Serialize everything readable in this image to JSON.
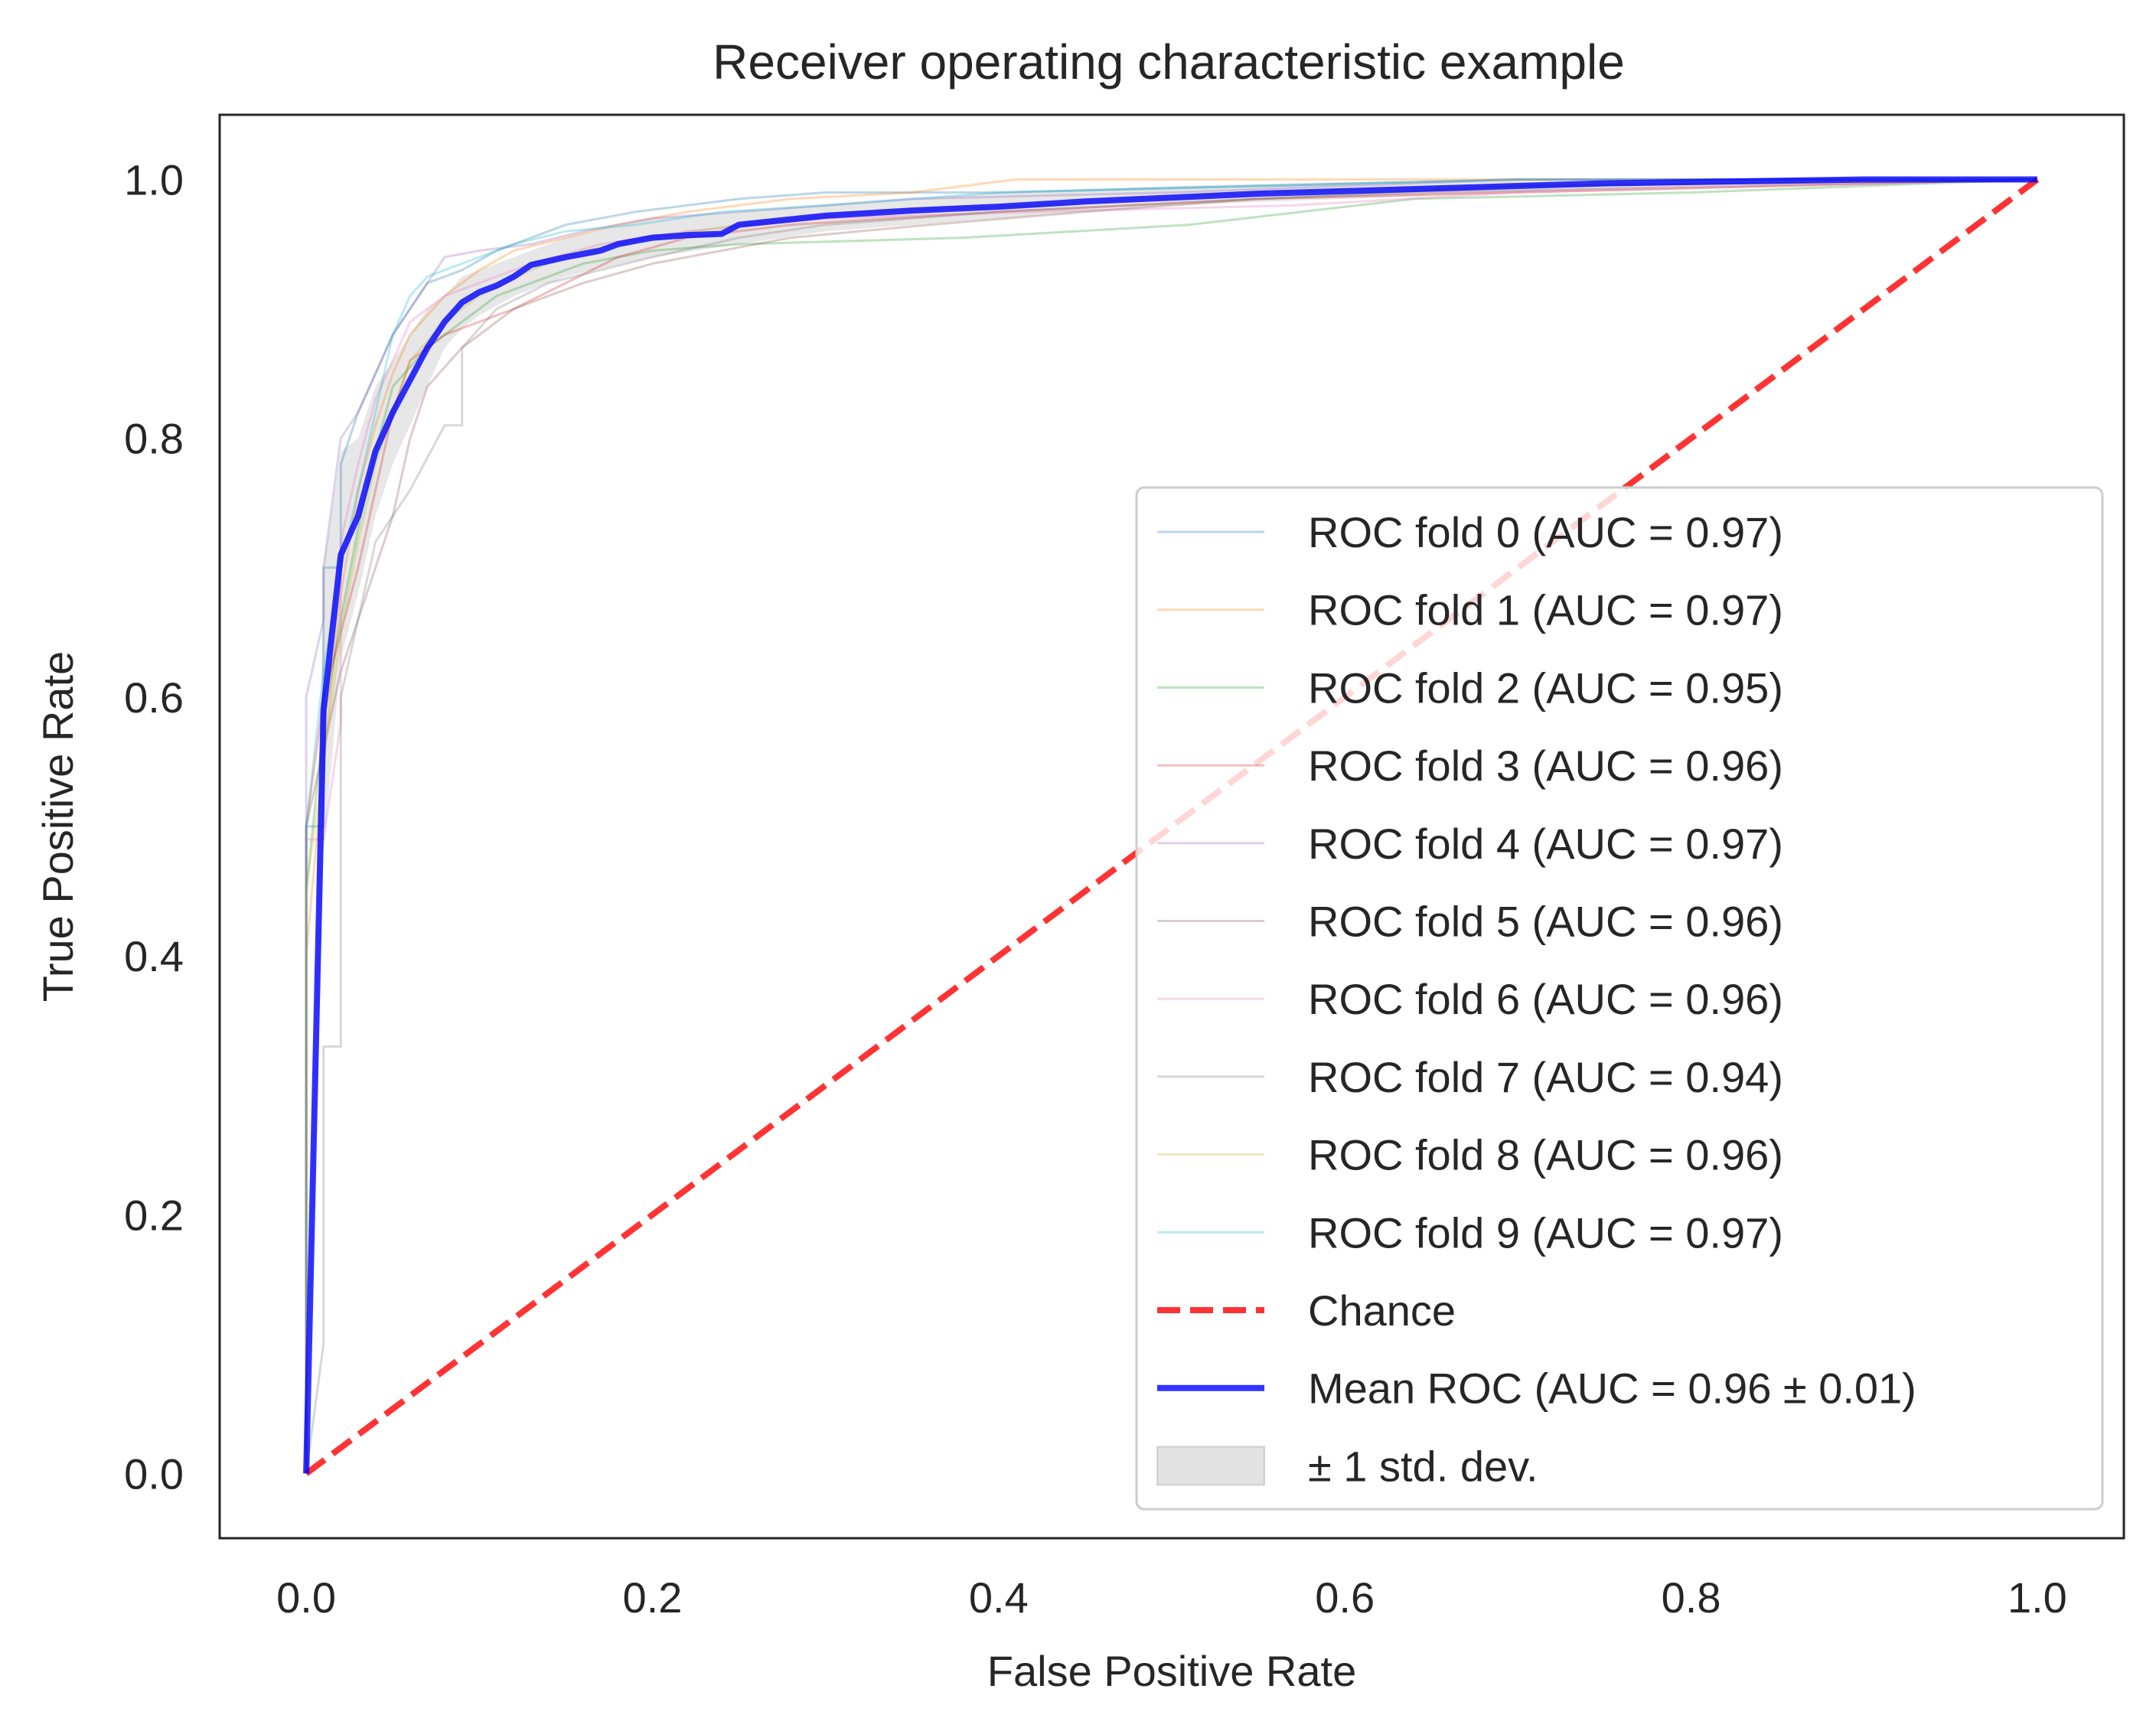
{
  "chart_data": {
    "type": "line",
    "title": "Receiver operating characteristic example",
    "xlabel": "False Positive Rate",
    "ylabel": "True Positive Rate",
    "xlim": [
      -0.05,
      1.05
    ],
    "ylim": [
      -0.05,
      1.05
    ],
    "xticks": [
      0.0,
      0.2,
      0.4,
      0.6,
      0.8,
      1.0
    ],
    "xtick_labels": [
      "0.0",
      "0.2",
      "0.4",
      "0.6",
      "0.8",
      "1.0"
    ],
    "yticks": [
      0.0,
      0.2,
      0.4,
      0.6,
      0.8,
      1.0
    ],
    "ytick_labels": [
      "0.0",
      "0.2",
      "0.4",
      "0.6",
      "0.8",
      "1.0"
    ],
    "grid": false,
    "legend_position": "lower right",
    "folds": [
      {
        "name": "ROC fold 0 (AUC = 0.97)",
        "color": "#1f77b4",
        "x": [
          0,
          0,
          0.01,
          0.01,
          0.02,
          0.02,
          0.03,
          0.04,
          0.05,
          0.06,
          0.07,
          0.09,
          0.11,
          0.13,
          0.15,
          0.17,
          0.19,
          0.22,
          0.25,
          0.3,
          0.4,
          0.55,
          0.7,
          1.0
        ],
        "y": [
          0,
          0.5,
          0.5,
          0.7,
          0.7,
          0.78,
          0.82,
          0.85,
          0.88,
          0.9,
          0.92,
          0.93,
          0.945,
          0.955,
          0.965,
          0.97,
          0.975,
          0.98,
          0.985,
          0.99,
          0.99,
          0.995,
          1.0,
          1.0
        ]
      },
      {
        "name": "ROC fold 1 (AUC = 0.97)",
        "color": "#ff7f0e",
        "x": [
          0,
          0,
          0.01,
          0.02,
          0.03,
          0.04,
          0.05,
          0.06,
          0.08,
          0.1,
          0.12,
          0.15,
          0.18,
          0.22,
          0.28,
          0.35,
          0.41,
          0.6,
          0.84,
          1.0
        ],
        "y": [
          0,
          0.4,
          0.55,
          0.68,
          0.76,
          0.81,
          0.85,
          0.88,
          0.91,
          0.93,
          0.945,
          0.955,
          0.965,
          0.975,
          0.985,
          0.99,
          1.0,
          1.0,
          1.0,
          1.0
        ]
      },
      {
        "name": "ROC fold 2 (AUC = 0.95)",
        "color": "#2ca02c",
        "x": [
          0,
          0,
          0.01,
          0.02,
          0.03,
          0.04,
          0.05,
          0.07,
          0.09,
          0.11,
          0.13,
          0.16,
          0.2,
          0.25,
          0.38,
          0.51,
          0.64,
          0.8,
          1.0
        ],
        "y": [
          0,
          0.45,
          0.58,
          0.66,
          0.73,
          0.79,
          0.84,
          0.87,
          0.89,
          0.91,
          0.92,
          0.935,
          0.945,
          0.95,
          0.955,
          0.965,
          0.985,
          0.99,
          1.0
        ]
      },
      {
        "name": "ROC fold 3 (AUC = 0.96)",
        "color": "#d62728",
        "x": [
          0,
          0,
          0.01,
          0.02,
          0.03,
          0.04,
          0.05,
          0.06,
          0.08,
          0.1,
          0.12,
          0.15,
          0.18,
          0.22,
          0.28,
          0.4,
          0.55,
          0.7,
          1.0
        ],
        "y": [
          0,
          0.5,
          0.6,
          0.65,
          0.7,
          0.76,
          0.82,
          0.86,
          0.88,
          0.89,
          0.9,
          0.92,
          0.94,
          0.955,
          0.965,
          0.975,
          0.985,
          0.99,
          1.0
        ]
      },
      {
        "name": "ROC fold 4 (AUC = 0.97)",
        "color": "#9467bd",
        "x": [
          0,
          0,
          0.01,
          0.01,
          0.02,
          0.03,
          0.04,
          0.05,
          0.06,
          0.07,
          0.08,
          0.1,
          0.13,
          0.16,
          0.2,
          0.25,
          0.35,
          0.5,
          0.7,
          1.0
        ],
        "y": [
          0,
          0.6,
          0.66,
          0.7,
          0.8,
          0.82,
          0.85,
          0.88,
          0.9,
          0.92,
          0.94,
          0.945,
          0.95,
          0.96,
          0.97,
          0.975,
          0.985,
          0.99,
          1.0,
          1.0
        ]
      },
      {
        "name": "ROC fold 5 (AUC = 0.96)",
        "color": "#8c564b",
        "x": [
          0,
          0,
          0.02,
          0.03,
          0.04,
          0.05,
          0.06,
          0.07,
          0.09,
          0.12,
          0.16,
          0.2,
          0.24,
          0.28,
          0.36,
          0.45,
          0.55,
          0.65,
          1.0
        ],
        "y": [
          0,
          0.5,
          0.62,
          0.66,
          0.7,
          0.74,
          0.8,
          0.84,
          0.87,
          0.9,
          0.92,
          0.935,
          0.945,
          0.955,
          0.965,
          0.975,
          0.985,
          0.99,
          1.0
        ]
      },
      {
        "name": "ROC fold 6 (AUC = 0.96)",
        "color": "#e377c2",
        "x": [
          0,
          0,
          0.01,
          0.02,
          0.02,
          0.03,
          0.04,
          0.05,
          0.06,
          0.08,
          0.1,
          0.13,
          0.17,
          0.22,
          0.3,
          0.42,
          0.57,
          0.7,
          1.0
        ],
        "y": [
          0,
          0.49,
          0.49,
          0.58,
          0.72,
          0.78,
          0.83,
          0.86,
          0.89,
          0.91,
          0.92,
          0.935,
          0.95,
          0.96,
          0.97,
          0.975,
          0.98,
          0.99,
          1.0
        ]
      },
      {
        "name": "ROC fold 7 (AUC = 0.94)",
        "color": "#7f7f7f",
        "x": [
          0,
          0.01,
          0.01,
          0.02,
          0.02,
          0.04,
          0.06,
          0.08,
          0.09,
          0.09,
          0.11,
          0.14,
          0.17,
          0.2,
          0.25,
          0.3,
          0.4,
          0.55,
          0.7,
          1.0
        ],
        "y": [
          0,
          0.1,
          0.33,
          0.33,
          0.6,
          0.72,
          0.76,
          0.81,
          0.81,
          0.87,
          0.9,
          0.92,
          0.93,
          0.94,
          0.955,
          0.965,
          0.975,
          0.985,
          0.995,
          1.0
        ]
      },
      {
        "name": "ROC fold 8 (AUC = 0.96)",
        "color": "#bcbd22",
        "x": [
          0,
          0,
          0.01,
          0.02,
          0.03,
          0.04,
          0.05,
          0.06,
          0.08,
          0.1,
          0.13,
          0.16,
          0.2,
          0.25,
          0.32,
          0.42,
          0.55,
          0.7,
          1.0
        ],
        "y": [
          0,
          0.45,
          0.55,
          0.65,
          0.72,
          0.78,
          0.82,
          0.86,
          0.89,
          0.91,
          0.93,
          0.945,
          0.955,
          0.965,
          0.975,
          0.98,
          0.99,
          0.995,
          1.0
        ]
      },
      {
        "name": "ROC fold 9 (AUC = 0.97)",
        "color": "#17becf",
        "x": [
          0,
          0,
          0.01,
          0.02,
          0.03,
          0.04,
          0.05,
          0.06,
          0.07,
          0.08,
          0.1,
          0.12,
          0.15,
          0.19,
          0.24,
          0.3,
          0.4,
          0.55,
          0.7,
          1.0
        ],
        "y": [
          0,
          0.5,
          0.62,
          0.7,
          0.76,
          0.82,
          0.88,
          0.91,
          0.925,
          0.93,
          0.94,
          0.95,
          0.96,
          0.965,
          0.975,
          0.98,
          0.99,
          0.995,
          1.0,
          1.0
        ]
      }
    ],
    "chance": {
      "name": "Chance",
      "color": "#ff0000",
      "x": [
        0,
        1
      ],
      "y": [
        0,
        1
      ]
    },
    "mean": {
      "name": "Mean ROC (AUC = 0.96 ± 0.01)",
      "color": "#0000ff",
      "x": [
        0,
        0.01,
        0.02,
        0.03,
        0.04,
        0.05,
        0.06,
        0.07,
        0.08,
        0.09,
        0.1,
        0.11,
        0.12,
        0.13,
        0.15,
        0.17,
        0.18,
        0.2,
        0.22,
        0.24,
        0.25,
        0.3,
        0.35,
        0.4,
        0.45,
        0.5,
        0.55,
        0.6,
        0.65,
        0.7,
        0.75,
        0.8,
        0.85,
        0.9,
        0.95,
        1.0
      ],
      "y": [
        0,
        0.59,
        0.71,
        0.74,
        0.79,
        0.82,
        0.845,
        0.87,
        0.89,
        0.905,
        0.913,
        0.918,
        0.925,
        0.934,
        0.94,
        0.945,
        0.95,
        0.955,
        0.957,
        0.958,
        0.965,
        0.972,
        0.976,
        0.979,
        0.983,
        0.986,
        0.989,
        0.991,
        0.993,
        0.995,
        0.997,
        0.998,
        0.999,
        1.0,
        1.0,
        1.0
      ]
    },
    "std_band": {
      "name": "± 1 std. dev.",
      "color": "#a0a0a0",
      "x": [
        0,
        0.01,
        0.02,
        0.03,
        0.04,
        0.05,
        0.06,
        0.07,
        0.08,
        0.09,
        0.1,
        0.12,
        0.15,
        0.2,
        0.25,
        0.3,
        0.4,
        0.5,
        0.6,
        0.7,
        0.8,
        0.9,
        1.0
      ],
      "lower": [
        0,
        0.48,
        0.63,
        0.68,
        0.74,
        0.78,
        0.81,
        0.84,
        0.87,
        0.885,
        0.895,
        0.91,
        0.925,
        0.94,
        0.95,
        0.96,
        0.97,
        0.98,
        0.985,
        0.99,
        0.995,
        1.0,
        1.0
      ],
      "upper": [
        0,
        0.7,
        0.79,
        0.8,
        0.84,
        0.86,
        0.88,
        0.9,
        0.91,
        0.925,
        0.93,
        0.94,
        0.955,
        0.97,
        0.975,
        0.98,
        0.99,
        0.995,
        0.998,
        1.0,
        1.0,
        1.0,
        1.0
      ]
    }
  }
}
